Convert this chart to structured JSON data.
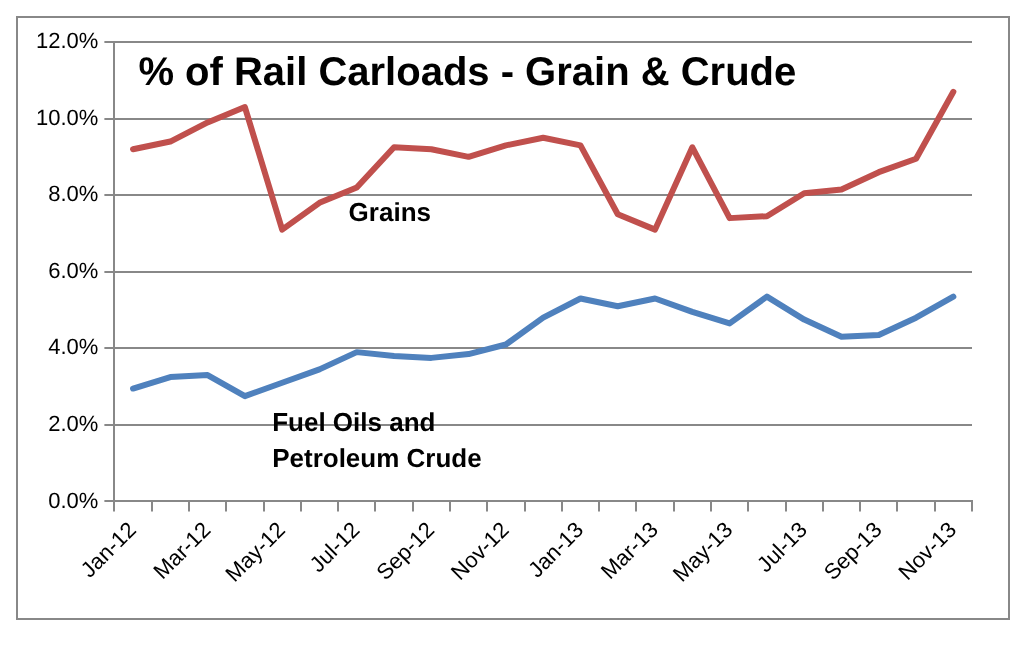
{
  "chart_data": {
    "type": "line",
    "title": "% of Rail Carloads - Grain & Crude",
    "categories": [
      "Jan-12",
      null,
      "Mar-12",
      null,
      "May-12",
      null,
      "Jul-12",
      null,
      "Sep-12",
      null,
      "Nov-12",
      null,
      "Jan-13",
      null,
      "Mar-13",
      null,
      "May-13",
      null,
      "Jul-13",
      null,
      "Sep-13",
      null,
      "Nov-13"
    ],
    "series": [
      {
        "name": "Grains",
        "color": "#c0504d",
        "values": [
          9.2,
          9.4,
          9.9,
          10.3,
          7.1,
          7.8,
          8.2,
          9.25,
          9.2,
          9.0,
          9.3,
          9.5,
          9.3,
          7.5,
          7.1,
          9.25,
          7.4,
          7.45,
          8.05,
          8.15,
          8.6,
          8.95,
          10.7
        ]
      },
      {
        "name": "Fuel Oils and Petroleum Crude",
        "color": "#4f81bd",
        "values": [
          2.95,
          3.25,
          3.3,
          2.75,
          3.1,
          3.45,
          3.9,
          3.8,
          3.75,
          3.85,
          4.1,
          4.8,
          5.3,
          5.1,
          5.3,
          4.95,
          4.65,
          5.35,
          4.75,
          4.3,
          4.35,
          4.8,
          5.35
        ]
      }
    ],
    "ylim": [
      0,
      12
    ],
    "yticks": [
      {
        "value": 0,
        "label": "0.0%"
      },
      {
        "value": 2,
        "label": "2.0%"
      },
      {
        "value": 4,
        "label": "4.0%"
      },
      {
        "value": 6,
        "label": "6.0%"
      },
      {
        "value": 8,
        "label": "8.0%"
      },
      {
        "value": 10,
        "label": "10.0%"
      },
      {
        "value": 12,
        "label": "12.0%"
      }
    ],
    "grid": "y",
    "legend": false,
    "marker": "none",
    "line_style": "solid"
  }
}
